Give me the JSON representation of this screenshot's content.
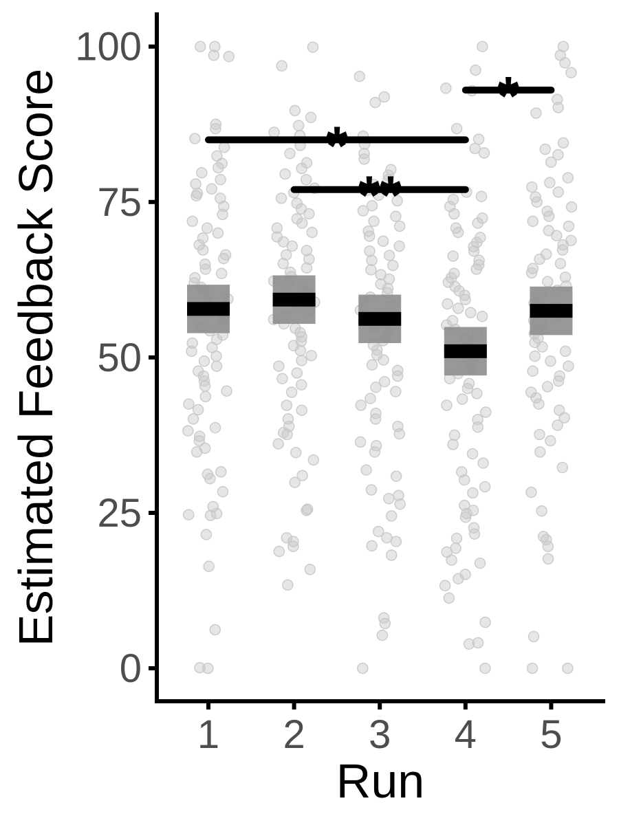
{
  "chart_data": {
    "type": "scatter",
    "xlabel": "Run",
    "ylabel": "Estimated Feedback Score",
    "categories": [
      "1",
      "2",
      "3",
      "4",
      "5"
    ],
    "yticks": [
      "0",
      "25",
      "50",
      "75",
      "100"
    ],
    "ylim": [
      -5.3,
      105.5
    ],
    "grid": false,
    "legend": "none",
    "summary": [
      {
        "run": "1",
        "mean": 57.8,
        "ci_low": 53.9,
        "ci_high": 61.7
      },
      {
        "run": "2",
        "mean": 59.3,
        "ci_low": 55.4,
        "ci_high": 63.2
      },
      {
        "run": "3",
        "mean": 56.2,
        "ci_low": 52.3,
        "ci_high": 60.1
      },
      {
        "run": "4",
        "mean": 51.0,
        "ci_low": 47.1,
        "ci_high": 54.9
      },
      {
        "run": "5",
        "mean": 57.5,
        "ci_low": 53.6,
        "ci_high": 61.4
      }
    ],
    "significance": [
      {
        "from": "1",
        "to": "4",
        "y": 85,
        "label": "*"
      },
      {
        "from": "2",
        "to": "4",
        "y": 77,
        "label": "**"
      },
      {
        "from": "4",
        "to": "5",
        "y": 93,
        "label": "*"
      }
    ],
    "points": {
      "1": [
        100,
        100,
        98.6,
        98.4,
        87.5,
        86.8,
        85.2,
        83.8,
        82.4,
        81.2,
        80.5,
        79.7,
        78.6,
        77.9,
        77.1,
        76.4,
        76.0,
        75.6,
        74.3,
        73.0,
        71.9,
        70.8,
        70.0,
        69.2,
        68.1,
        67.3,
        66.5,
        65.9,
        65.0,
        64.2,
        63.5,
        62.8,
        62.0,
        61.3,
        60.7,
        60.0,
        59.4,
        58.8,
        58.1,
        57.5,
        56.9,
        56.2,
        55.6,
        54.9,
        54.3,
        53.6,
        52.9,
        52.3,
        51.6,
        51.0,
        50.2,
        49.4,
        48.6,
        47.8,
        47.0,
        46.2,
        45.4,
        44.6,
        43.7,
        42.5,
        41.6,
        40.1,
        38.7,
        38.2,
        37.3,
        36.6,
        35.4,
        34.8,
        31.6,
        31.2,
        30.5,
        28.4,
        26.0,
        24.9,
        24.7,
        24.6,
        21.5,
        16.4,
        6.2,
        0.1,
        0.0
      ],
      "2": [
        99.9,
        96.9,
        89.7,
        88.6,
        87.3,
        86.2,
        85.7,
        84.1,
        82.8,
        81.3,
        80.4,
        79.5,
        78.6,
        77.2,
        76.5,
        75.6,
        74.8,
        73.9,
        73.1,
        72.3,
        71.6,
        70.8,
        70.1,
        69.4,
        68.6,
        67.9,
        67.2,
        66.5,
        65.8,
        65.1,
        64.4,
        63.7,
        63.0,
        62.3,
        61.6,
        60.9,
        60.2,
        59.6,
        58.9,
        58.2,
        57.5,
        56.8,
        56.1,
        55.4,
        54.7,
        54.0,
        53.3,
        52.6,
        51.9,
        51.1,
        50.3,
        49.5,
        48.6,
        47.5,
        46.6,
        45.6,
        44.4,
        42.3,
        41.5,
        40.1,
        38.9,
        37.9,
        37.6,
        36.1,
        34.7,
        33.5,
        31.0,
        29.9,
        25.6,
        25.4,
        21.0,
        20.4,
        19.6,
        18.8,
        15.9,
        13.4
      ],
      "3": [
        95.2,
        91.9,
        91.0,
        85.6,
        84.3,
        82.8,
        81.9,
        80.2,
        79.3,
        78.6,
        77.8,
        76.9,
        76.1,
        75.2,
        74.4,
        73.6,
        72.7,
        71.9,
        71.1,
        70.3,
        69.5,
        68.7,
        67.9,
        67.1,
        66.4,
        65.6,
        64.8,
        64.1,
        63.3,
        62.6,
        61.8,
        61.1,
        60.4,
        59.7,
        59.0,
        58.3,
        57.6,
        56.9,
        56.2,
        55.5,
        54.8,
        54.1,
        53.4,
        52.7,
        52.0,
        51.2,
        50.4,
        49.6,
        48.8,
        47.9,
        47.0,
        46.1,
        45.2,
        44.5,
        43.4,
        42.3,
        41.0,
        40.1,
        38.9,
        37.7,
        36.4,
        35.8,
        34.8,
        31.9,
        30.9,
        28.7,
        27.8,
        27.3,
        26.4,
        24.5,
        22.0,
        21.0,
        20.4,
        19.7,
        18.2,
        8.1,
        7.2,
        5.3,
        0.0
      ],
      "4": [
        100,
        96.2,
        93.3,
        92.9,
        86.8,
        85.1,
        83.6,
        82.9,
        76.6,
        75.9,
        75.4,
        74.3,
        73.1,
        72.4,
        71.6,
        70.8,
        70.1,
        69.3,
        68.5,
        67.8,
        67.1,
        66.3,
        65.6,
        64.9,
        64.2,
        63.5,
        62.8,
        62.1,
        61.4,
        60.7,
        60.0,
        59.3,
        58.6,
        57.9,
        57.2,
        56.6,
        55.9,
        55.2,
        54.5,
        53.8,
        53.1,
        52.4,
        51.7,
        51.0,
        50.3,
        49.6,
        48.9,
        48.2,
        47.4,
        46.6,
        45.8,
        45.0,
        44.2,
        43.3,
        42.3,
        41.2,
        40.0,
        38.8,
        37.5,
        36.0,
        34.5,
        33.0,
        31.6,
        30.3,
        29.2,
        28.2,
        26.2,
        25.4,
        24.9,
        24.3,
        22.6,
        21.6,
        20.9,
        19.3,
        18.7,
        17.4,
        16.9,
        15.1,
        14.4,
        13.3,
        11.3,
        7.4,
        4.1,
        3.9,
        0.0
      ],
      "5": [
        100,
        98.6,
        97.4,
        95.8,
        91.5,
        90.2,
        89.3,
        84.5,
        83.5,
        82.6,
        81.4,
        78.9,
        78.1,
        77.4,
        76.6,
        75.8,
        75.0,
        74.2,
        73.5,
        72.7,
        71.9,
        71.1,
        70.4,
        69.6,
        68.8,
        68.1,
        67.3,
        66.6,
        65.8,
        65.1,
        64.3,
        63.6,
        62.9,
        62.2,
        61.5,
        60.8,
        60.1,
        59.4,
        58.7,
        58.0,
        57.3,
        56.6,
        55.9,
        55.2,
        54.5,
        53.8,
        53.1,
        52.4,
        51.7,
        51.0,
        50.2,
        49.4,
        48.6,
        47.8,
        47.0,
        46.2,
        45.3,
        44.4,
        43.5,
        42.5,
        41.5,
        40.3,
        39.1,
        37.6,
        36.6,
        34.8,
        32.3,
        28.3,
        25.3,
        21.2,
        20.7,
        19.6,
        17.6,
        5.1,
        0.0,
        0.0
      ]
    },
    "colors": {
      "points": "#c8c8c8",
      "ci_band": "#8f8f8f",
      "mean_bar": "#000000",
      "axis": "#000000",
      "tick_text": "#4d4d4d"
    }
  }
}
